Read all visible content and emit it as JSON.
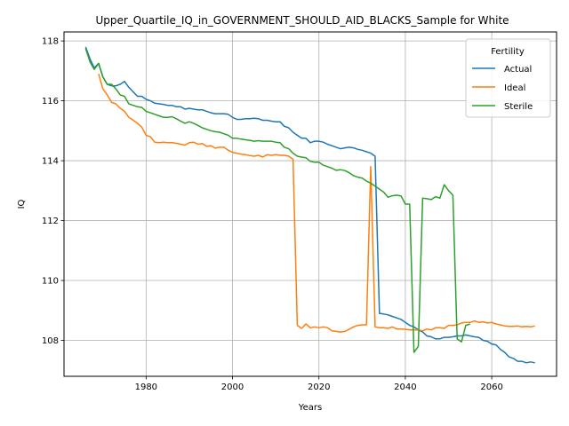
{
  "chart_data": {
    "type": "line",
    "title": "Upper_Quartile_IQ_in_GOVERNMENT_SHOULD_AID_BLACKS_Sample for White",
    "xlabel": "Years",
    "ylabel": "IQ",
    "xlim": [
      1961,
      2075
    ],
    "ylim": [
      106.8,
      118.3
    ],
    "xticks": [
      1980,
      2000,
      2020,
      2040,
      2060
    ],
    "yticks": [
      108,
      110,
      112,
      114,
      116,
      118
    ],
    "grid": true,
    "legend": {
      "title": "Fertility",
      "position": "top-right"
    },
    "series": [
      {
        "name": "Actual",
        "color": "#1f77b4",
        "points": [
          [
            1966,
            117.8
          ],
          [
            1967,
            117.4
          ],
          [
            1968,
            117.1
          ],
          [
            1969,
            117.25
          ],
          [
            1970,
            116.8
          ],
          [
            1971,
            116.55
          ],
          [
            1972,
            116.5
          ],
          [
            1973,
            116.5
          ],
          [
            1974,
            116.55
          ],
          [
            1975,
            116.65
          ],
          [
            1976,
            116.45
          ],
          [
            1977,
            116.3
          ],
          [
            1978,
            116.15
          ],
          [
            1979,
            116.15
          ],
          [
            1980,
            116.05
          ],
          [
            1981,
            116.0
          ],
          [
            1982,
            115.92
          ],
          [
            1983,
            115.9
          ],
          [
            1984,
            115.88
          ],
          [
            1985,
            115.85
          ],
          [
            1986,
            115.85
          ],
          [
            1987,
            115.8
          ],
          [
            1988,
            115.8
          ],
          [
            1989,
            115.72
          ],
          [
            1990,
            115.75
          ],
          [
            1991,
            115.72
          ],
          [
            1992,
            115.7
          ],
          [
            1993,
            115.7
          ],
          [
            1994,
            115.65
          ],
          [
            1995,
            115.6
          ],
          [
            1996,
            115.57
          ],
          [
            1997,
            115.57
          ],
          [
            1998,
            115.57
          ],
          [
            1999,
            115.55
          ],
          [
            2000,
            115.45
          ],
          [
            2001,
            115.38
          ],
          [
            2002,
            115.38
          ],
          [
            2003,
            115.4
          ],
          [
            2004,
            115.4
          ],
          [
            2005,
            115.42
          ],
          [
            2006,
            115.4
          ],
          [
            2007,
            115.35
          ],
          [
            2008,
            115.35
          ],
          [
            2009,
            115.32
          ],
          [
            2010,
            115.3
          ],
          [
            2011,
            115.3
          ],
          [
            2012,
            115.15
          ],
          [
            2013,
            115.1
          ],
          [
            2014,
            114.95
          ],
          [
            2015,
            114.85
          ],
          [
            2016,
            114.75
          ],
          [
            2017,
            114.75
          ],
          [
            2018,
            114.6
          ],
          [
            2019,
            114.65
          ],
          [
            2020,
            114.65
          ],
          [
            2021,
            114.62
          ],
          [
            2022,
            114.55
          ],
          [
            2023,
            114.5
          ],
          [
            2024,
            114.45
          ],
          [
            2025,
            114.4
          ],
          [
            2026,
            114.43
          ],
          [
            2027,
            114.45
          ],
          [
            2028,
            114.43
          ],
          [
            2029,
            114.38
          ],
          [
            2030,
            114.35
          ],
          [
            2031,
            114.3
          ],
          [
            2032,
            114.25
          ],
          [
            2033,
            114.15
          ],
          [
            2034,
            108.9
          ],
          [
            2035,
            108.88
          ],
          [
            2036,
            108.85
          ],
          [
            2037,
            108.8
          ],
          [
            2038,
            108.75
          ],
          [
            2039,
            108.7
          ],
          [
            2040,
            108.6
          ],
          [
            2041,
            108.5
          ],
          [
            2042,
            108.45
          ],
          [
            2043,
            108.35
          ],
          [
            2044,
            108.28
          ],
          [
            2045,
            108.15
          ],
          [
            2046,
            108.12
          ],
          [
            2047,
            108.05
          ],
          [
            2048,
            108.05
          ],
          [
            2049,
            108.1
          ],
          [
            2050,
            108.1
          ],
          [
            2051,
            108.12
          ],
          [
            2052,
            108.15
          ],
          [
            2053,
            108.15
          ],
          [
            2054,
            108.18
          ],
          [
            2055,
            108.15
          ],
          [
            2056,
            108.12
          ],
          [
            2057,
            108.1
          ],
          [
            2058,
            108.0
          ],
          [
            2059,
            107.97
          ],
          [
            2060,
            107.88
          ],
          [
            2061,
            107.85
          ],
          [
            2062,
            107.7
          ],
          [
            2063,
            107.6
          ],
          [
            2064,
            107.45
          ],
          [
            2065,
            107.4
          ],
          [
            2066,
            107.3
          ],
          [
            2067,
            107.3
          ],
          [
            2068,
            107.25
          ],
          [
            2069,
            107.28
          ],
          [
            2070,
            107.25
          ]
        ]
      },
      {
        "name": "Ideal",
        "color": "#ff7f0e",
        "points": [
          [
            1969,
            116.9
          ],
          [
            1970,
            116.4
          ],
          [
            1971,
            116.2
          ],
          [
            1972,
            115.95
          ],
          [
            1973,
            115.9
          ],
          [
            1974,
            115.75
          ],
          [
            1975,
            115.65
          ],
          [
            1976,
            115.45
          ],
          [
            1977,
            115.35
          ],
          [
            1978,
            115.25
          ],
          [
            1979,
            115.12
          ],
          [
            1980,
            114.85
          ],
          [
            1981,
            114.8
          ],
          [
            1982,
            114.62
          ],
          [
            1983,
            114.6
          ],
          [
            1984,
            114.62
          ],
          [
            1985,
            114.6
          ],
          [
            1986,
            114.6
          ],
          [
            1987,
            114.58
          ],
          [
            1988,
            114.55
          ],
          [
            1989,
            114.52
          ],
          [
            1990,
            114.6
          ],
          [
            1991,
            114.62
          ],
          [
            1992,
            114.55
          ],
          [
            1993,
            114.57
          ],
          [
            1994,
            114.48
          ],
          [
            1995,
            114.5
          ],
          [
            1996,
            114.42
          ],
          [
            1997,
            114.45
          ],
          [
            1998,
            114.45
          ],
          [
            1999,
            114.35
          ],
          [
            2000,
            114.28
          ],
          [
            2001,
            114.25
          ],
          [
            2002,
            114.22
          ],
          [
            2003,
            114.2
          ],
          [
            2004,
            114.17
          ],
          [
            2005,
            114.15
          ],
          [
            2006,
            114.18
          ],
          [
            2007,
            114.12
          ],
          [
            2008,
            114.2
          ],
          [
            2009,
            114.18
          ],
          [
            2010,
            114.2
          ],
          [
            2011,
            114.18
          ],
          [
            2012,
            114.18
          ],
          [
            2013,
            114.15
          ],
          [
            2014,
            114.05
          ],
          [
            2015,
            108.5
          ],
          [
            2016,
            108.4
          ],
          [
            2017,
            108.55
          ],
          [
            2018,
            108.42
          ],
          [
            2019,
            108.45
          ],
          [
            2020,
            108.42
          ],
          [
            2021,
            108.45
          ],
          [
            2022,
            108.42
          ],
          [
            2023,
            108.32
          ],
          [
            2024,
            108.3
          ],
          [
            2025,
            108.28
          ],
          [
            2026,
            108.3
          ],
          [
            2027,
            108.37
          ],
          [
            2028,
            108.45
          ],
          [
            2029,
            108.5
          ],
          [
            2030,
            108.52
          ],
          [
            2031,
            108.52
          ],
          [
            2032,
            113.8
          ],
          [
            2033,
            108.45
          ],
          [
            2034,
            108.42
          ],
          [
            2035,
            108.42
          ],
          [
            2036,
            108.4
          ],
          [
            2037,
            108.45
          ],
          [
            2038,
            108.38
          ],
          [
            2039,
            108.38
          ],
          [
            2040,
            108.37
          ],
          [
            2041,
            108.35
          ],
          [
            2042,
            108.35
          ],
          [
            2043,
            108.35
          ],
          [
            2044,
            108.32
          ],
          [
            2045,
            108.38
          ],
          [
            2046,
            108.35
          ],
          [
            2047,
            108.42
          ],
          [
            2048,
            108.42
          ],
          [
            2049,
            108.4
          ],
          [
            2050,
            108.5
          ],
          [
            2051,
            108.5
          ],
          [
            2052,
            108.52
          ],
          [
            2053,
            108.58
          ],
          [
            2054,
            108.6
          ],
          [
            2055,
            108.6
          ],
          [
            2056,
            108.65
          ],
          [
            2057,
            108.6
          ],
          [
            2058,
            108.62
          ],
          [
            2059,
            108.58
          ],
          [
            2060,
            108.6
          ],
          [
            2061,
            108.55
          ],
          [
            2062,
            108.52
          ],
          [
            2063,
            108.48
          ],
          [
            2064,
            108.47
          ],
          [
            2065,
            108.47
          ],
          [
            2066,
            108.48
          ],
          [
            2067,
            108.45
          ],
          [
            2068,
            108.47
          ],
          [
            2069,
            108.45
          ],
          [
            2070,
            108.48
          ]
        ]
      },
      {
        "name": "Sterile",
        "color": "#2ca02c",
        "points": [
          [
            1966,
            117.75
          ],
          [
            1967,
            117.3
          ],
          [
            1968,
            117.05
          ],
          [
            1969,
            117.25
          ],
          [
            1970,
            116.8
          ],
          [
            1971,
            116.55
          ],
          [
            1972,
            116.55
          ],
          [
            1973,
            116.4
          ],
          [
            1974,
            116.2
          ],
          [
            1975,
            116.15
          ],
          [
            1976,
            115.9
          ],
          [
            1977,
            115.85
          ],
          [
            1978,
            115.8
          ],
          [
            1979,
            115.78
          ],
          [
            1980,
            115.65
          ],
          [
            1981,
            115.6
          ],
          [
            1982,
            115.55
          ],
          [
            1983,
            115.5
          ],
          [
            1984,
            115.45
          ],
          [
            1985,
            115.45
          ],
          [
            1986,
            115.47
          ],
          [
            1987,
            115.4
          ],
          [
            1988,
            115.32
          ],
          [
            1989,
            115.25
          ],
          [
            1990,
            115.3
          ],
          [
            1991,
            115.25
          ],
          [
            1992,
            115.18
          ],
          [
            1993,
            115.1
          ],
          [
            1994,
            115.05
          ],
          [
            1995,
            115.0
          ],
          [
            1996,
            114.97
          ],
          [
            1997,
            114.95
          ],
          [
            1998,
            114.9
          ],
          [
            1999,
            114.85
          ],
          [
            2000,
            114.75
          ],
          [
            2001,
            114.75
          ],
          [
            2002,
            114.72
          ],
          [
            2003,
            114.7
          ],
          [
            2004,
            114.68
          ],
          [
            2005,
            114.65
          ],
          [
            2006,
            114.67
          ],
          [
            2007,
            114.65
          ],
          [
            2008,
            114.65
          ],
          [
            2009,
            114.65
          ],
          [
            2010,
            114.62
          ],
          [
            2011,
            114.6
          ],
          [
            2012,
            114.45
          ],
          [
            2013,
            114.4
          ],
          [
            2014,
            114.25
          ],
          [
            2015,
            114.15
          ],
          [
            2016,
            114.12
          ],
          [
            2017,
            114.1
          ],
          [
            2018,
            113.98
          ],
          [
            2019,
            113.95
          ],
          [
            2020,
            113.95
          ],
          [
            2021,
            113.85
          ],
          [
            2022,
            113.8
          ],
          [
            2023,
            113.75
          ],
          [
            2024,
            113.68
          ],
          [
            2025,
            113.7
          ],
          [
            2026,
            113.67
          ],
          [
            2027,
            113.6
          ],
          [
            2028,
            113.5
          ],
          [
            2029,
            113.45
          ],
          [
            2030,
            113.42
          ],
          [
            2031,
            113.32
          ],
          [
            2032,
            113.25
          ],
          [
            2033,
            113.15
          ],
          [
            2034,
            113.05
          ],
          [
            2035,
            112.95
          ],
          [
            2036,
            112.78
          ],
          [
            2037,
            112.83
          ],
          [
            2038,
            112.85
          ],
          [
            2039,
            112.82
          ],
          [
            2040,
            112.55
          ],
          [
            2041,
            112.55
          ],
          [
            2042,
            107.6
          ],
          [
            2043,
            107.8
          ],
          [
            2044,
            112.75
          ],
          [
            2045,
            112.73
          ],
          [
            2046,
            112.7
          ],
          [
            2047,
            112.8
          ],
          [
            2048,
            112.75
          ],
          [
            2049,
            113.2
          ],
          [
            2050,
            113.0
          ],
          [
            2051,
            112.85
          ],
          [
            2052,
            108.05
          ],
          [
            2053,
            107.95
          ],
          [
            2054,
            108.5
          ],
          [
            2055,
            108.55
          ]
        ]
      }
    ]
  }
}
